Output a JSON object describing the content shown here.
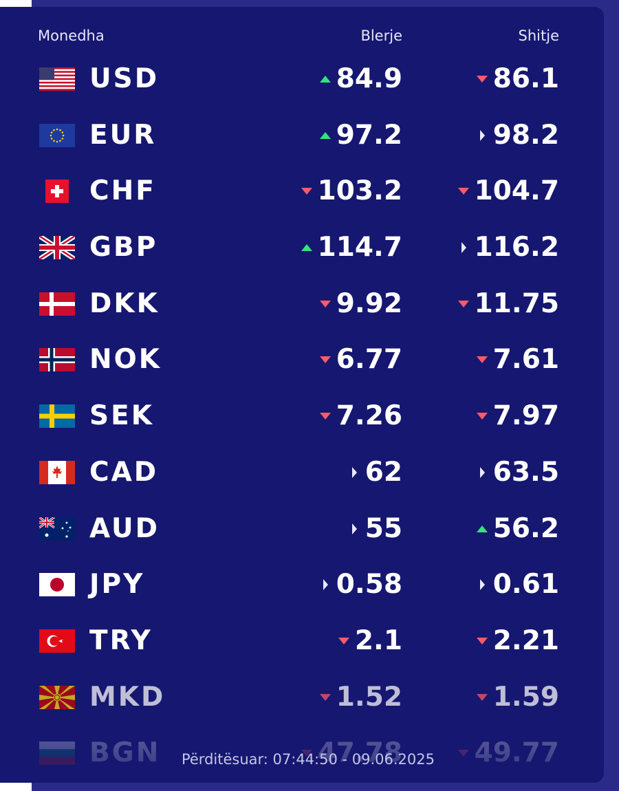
{
  "header": {
    "currency": "Monedha",
    "buy": "Blerje",
    "sell": "Shitje"
  },
  "rates": [
    {
      "code": "USD",
      "flag": "us-flag-icon",
      "buy": "84.9",
      "buy_trend": "up",
      "sell": "86.1",
      "sell_trend": "down"
    },
    {
      "code": "EUR",
      "flag": "eu-flag-icon",
      "buy": "97.2",
      "buy_trend": "up",
      "sell": "98.2",
      "sell_trend": "flat"
    },
    {
      "code": "CHF",
      "flag": "ch-flag-icon",
      "buy": "103.2",
      "buy_trend": "down",
      "sell": "104.7",
      "sell_trend": "down"
    },
    {
      "code": "GBP",
      "flag": "gb-flag-icon",
      "buy": "114.7",
      "buy_trend": "up",
      "sell": "116.2",
      "sell_trend": "flat"
    },
    {
      "code": "DKK",
      "flag": "dk-flag-icon",
      "buy": "9.92",
      "buy_trend": "down",
      "sell": "11.75",
      "sell_trend": "down"
    },
    {
      "code": "NOK",
      "flag": "no-flag-icon",
      "buy": "6.77",
      "buy_trend": "down",
      "sell": "7.61",
      "sell_trend": "down"
    },
    {
      "code": "SEK",
      "flag": "se-flag-icon",
      "buy": "7.26",
      "buy_trend": "down",
      "sell": "7.97",
      "sell_trend": "down"
    },
    {
      "code": "CAD",
      "flag": "ca-flag-icon",
      "buy": "62",
      "buy_trend": "flat",
      "sell": "63.5",
      "sell_trend": "flat"
    },
    {
      "code": "AUD",
      "flag": "au-flag-icon",
      "buy": "55",
      "buy_trend": "flat",
      "sell": "56.2",
      "sell_trend": "up"
    },
    {
      "code": "JPY",
      "flag": "jp-flag-icon",
      "buy": "0.58",
      "buy_trend": "flat",
      "sell": "0.61",
      "sell_trend": "flat"
    },
    {
      "code": "TRY",
      "flag": "tr-flag-icon",
      "buy": "2.1",
      "buy_trend": "down",
      "sell": "2.21",
      "sell_trend": "down"
    },
    {
      "code": "MKD",
      "flag": "mk-flag-icon",
      "buy": "1.52",
      "buy_trend": "down",
      "sell": "1.59",
      "sell_trend": "down"
    },
    {
      "code": "BGN",
      "flag": "bg-flag-icon",
      "buy": "47.78",
      "buy_trend": "down",
      "sell": "49.77",
      "sell_trend": "down"
    }
  ],
  "footer": {
    "updated": "Përditësuar: 07:44:50 - 09.06.2025"
  },
  "colors": {
    "panel": "#161770",
    "up": "#2ee67a",
    "down": "#ff5a6a",
    "flat": "#e8e9ff"
  }
}
